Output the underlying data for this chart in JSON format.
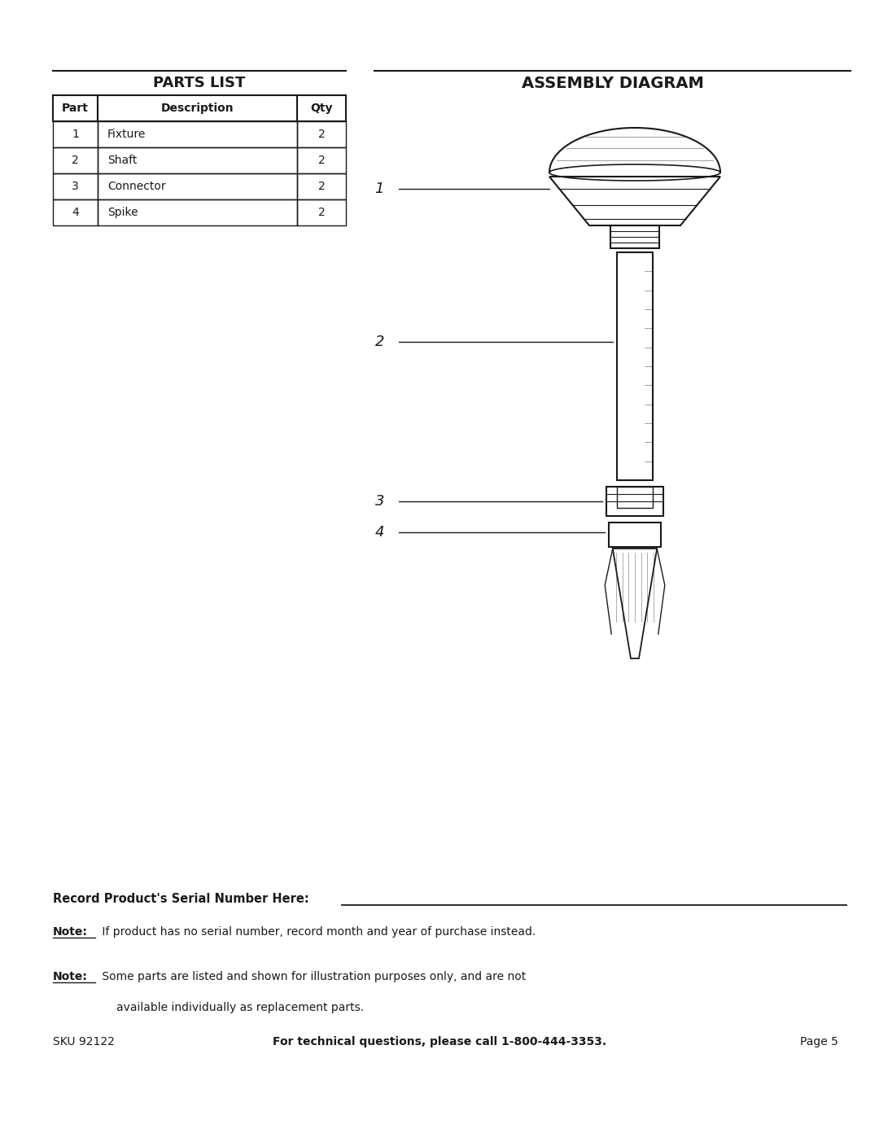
{
  "bg_color": "#ffffff",
  "page_width": 10.8,
  "page_height": 13.97,
  "parts_list_title": "PARTS LIST",
  "assembly_diagram_title": "ASSEMBLY DIAGRAM",
  "table_headers": [
    "Part",
    "Description",
    "Qty"
  ],
  "table_rows": [
    [
      "1",
      "Fixture",
      "2"
    ],
    [
      "2",
      "Shaft",
      "2"
    ],
    [
      "3",
      "Connector",
      "2"
    ],
    [
      "4",
      "Spike",
      "2"
    ]
  ],
  "serial_number_label": "Record Product's Serial Number Here:",
  "note1_label": "Note:",
  "note1_text": " If product has no serial number, record month and year of purchase instead.",
  "note2_label": "Note:",
  "note2_line1": " Some parts are listed and shown for illustration purposes only, and are not",
  "note2_line2": "available individually as replacement parts.",
  "footer_sku": "SKU 92122",
  "footer_tech": "For technical questions, please call 1-800-444-3353.",
  "footer_page": "Page 5",
  "text_color": "#1a1a1a",
  "line_color": "#1a1a1a"
}
